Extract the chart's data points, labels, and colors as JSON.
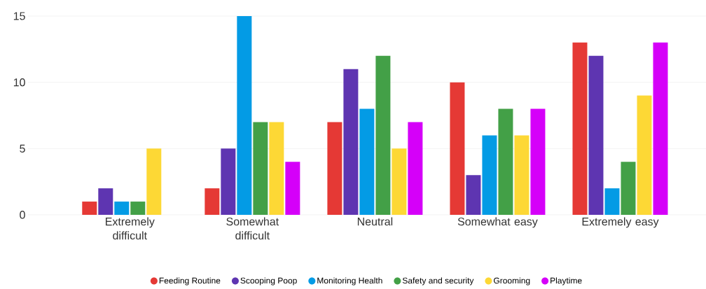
{
  "chart_data": {
    "type": "bar",
    "categories": [
      "Extremely difficult",
      "Somewhat difficult",
      "Neutral",
      "Somewhat easy",
      "Extremely easy"
    ],
    "series": [
      {
        "name": "Feeding Routine",
        "color": "#e53935",
        "values": [
          1,
          2,
          7,
          10,
          13
        ]
      },
      {
        "name": "Scooping Poop",
        "color": "#5e35b1",
        "values": [
          2,
          5,
          11,
          3,
          12
        ]
      },
      {
        "name": "Monitoring Health",
        "color": "#039be5",
        "values": [
          1,
          15,
          8,
          6,
          2
        ]
      },
      {
        "name": "Safety and security",
        "color": "#43a047",
        "values": [
          1,
          7,
          12,
          8,
          4
        ]
      },
      {
        "name": "Grooming",
        "color": "#fdd835",
        "values": [
          5,
          7,
          5,
          6,
          9
        ]
      },
      {
        "name": "Playtime",
        "color": "#d500f9",
        "values": [
          0,
          4,
          7,
          8,
          13
        ]
      }
    ],
    "ylim": [
      0,
      15
    ],
    "yticks": [
      0,
      5,
      10,
      15
    ],
    "grid": "y",
    "legend": "bottom"
  }
}
